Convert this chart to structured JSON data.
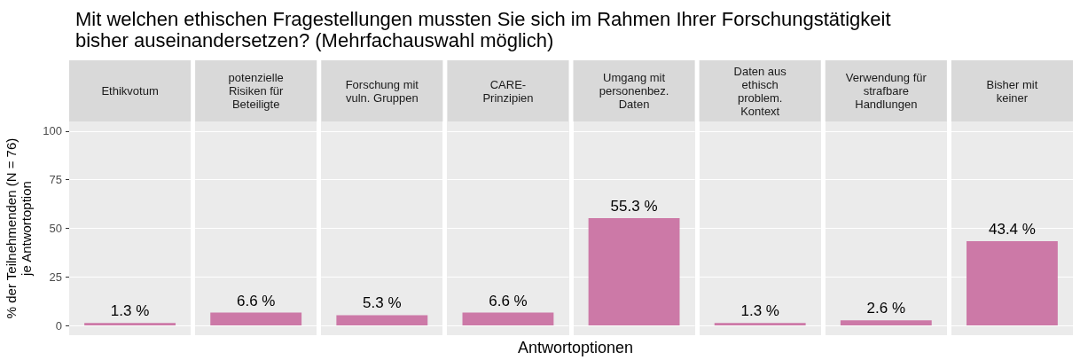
{
  "chart_data": {
    "type": "bar",
    "title": "Mit welchen ethischen Fragestellungen mussten Sie sich im Rahmen Ihrer Forschungstätigkeit\nbisher auseinandersetzen? (Mehrfachauswahl möglich)",
    "xlabel": "Antwortoptionen",
    "ylabel": "% der Teilnehmenden (N = 76)\nje Antwortoption",
    "categories": [
      "Ethikvotum",
      "potenzielle\nRisiken für\nBeteiligte",
      "Forschung mit\nvuln. Gruppen",
      "CARE-\nPrinzipien",
      "Umgang mit\npersonenbez.\nDaten",
      "Daten aus\nethisch\nproblem.\nKontext",
      "Verwendung für\nstrafbare\nHandlungen",
      "Bisher mit\nkeiner"
    ],
    "values": [
      1.3,
      6.6,
      5.3,
      6.6,
      55.3,
      1.3,
      2.6,
      43.4
    ],
    "value_labels": [
      "1.3 %",
      "6.6 %",
      "5.3 %",
      "6.6 %",
      "55.3 %",
      "1.3 %",
      "2.6 %",
      "43.4 %"
    ],
    "color": "#cc79a7",
    "ylim": [
      -5,
      105
    ],
    "yticks": [
      0,
      25,
      50,
      75,
      100
    ],
    "grid": true
  }
}
